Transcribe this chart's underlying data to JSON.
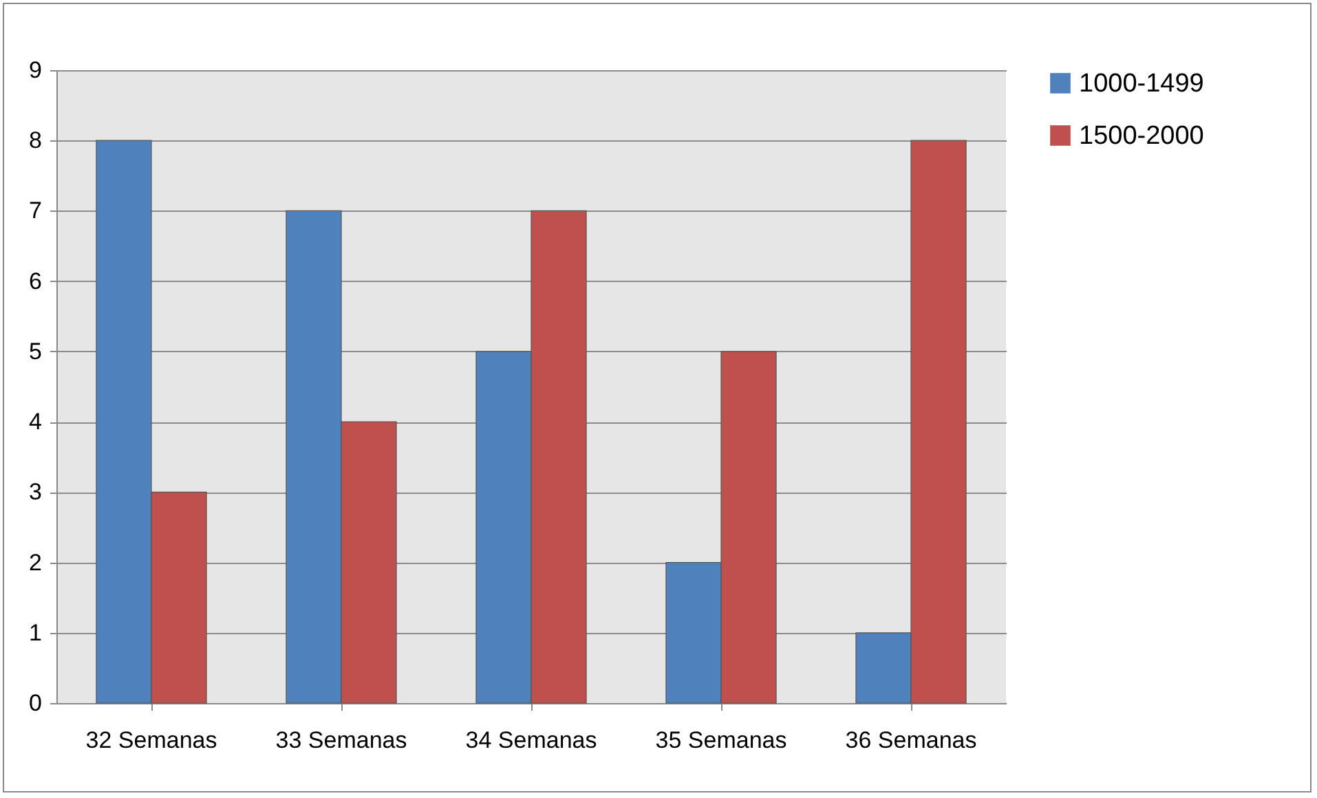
{
  "chart_data": {
    "type": "bar",
    "categories": [
      "32 Semanas",
      "33 Semanas",
      "34 Semanas",
      "35 Semanas",
      "36 Semanas"
    ],
    "series": [
      {
        "name": "1000-1499",
        "color": "#4f81bd",
        "values": [
          8,
          7,
          5,
          2,
          1
        ]
      },
      {
        "name": "1500-2000",
        "color": "#c0504d",
        "values": [
          3,
          4,
          7,
          5,
          8
        ]
      }
    ],
    "ylim": [
      0,
      9
    ],
    "yticks": [
      0,
      1,
      2,
      3,
      4,
      5,
      6,
      7,
      8,
      9
    ],
    "grid": "y",
    "legend": "right"
  }
}
